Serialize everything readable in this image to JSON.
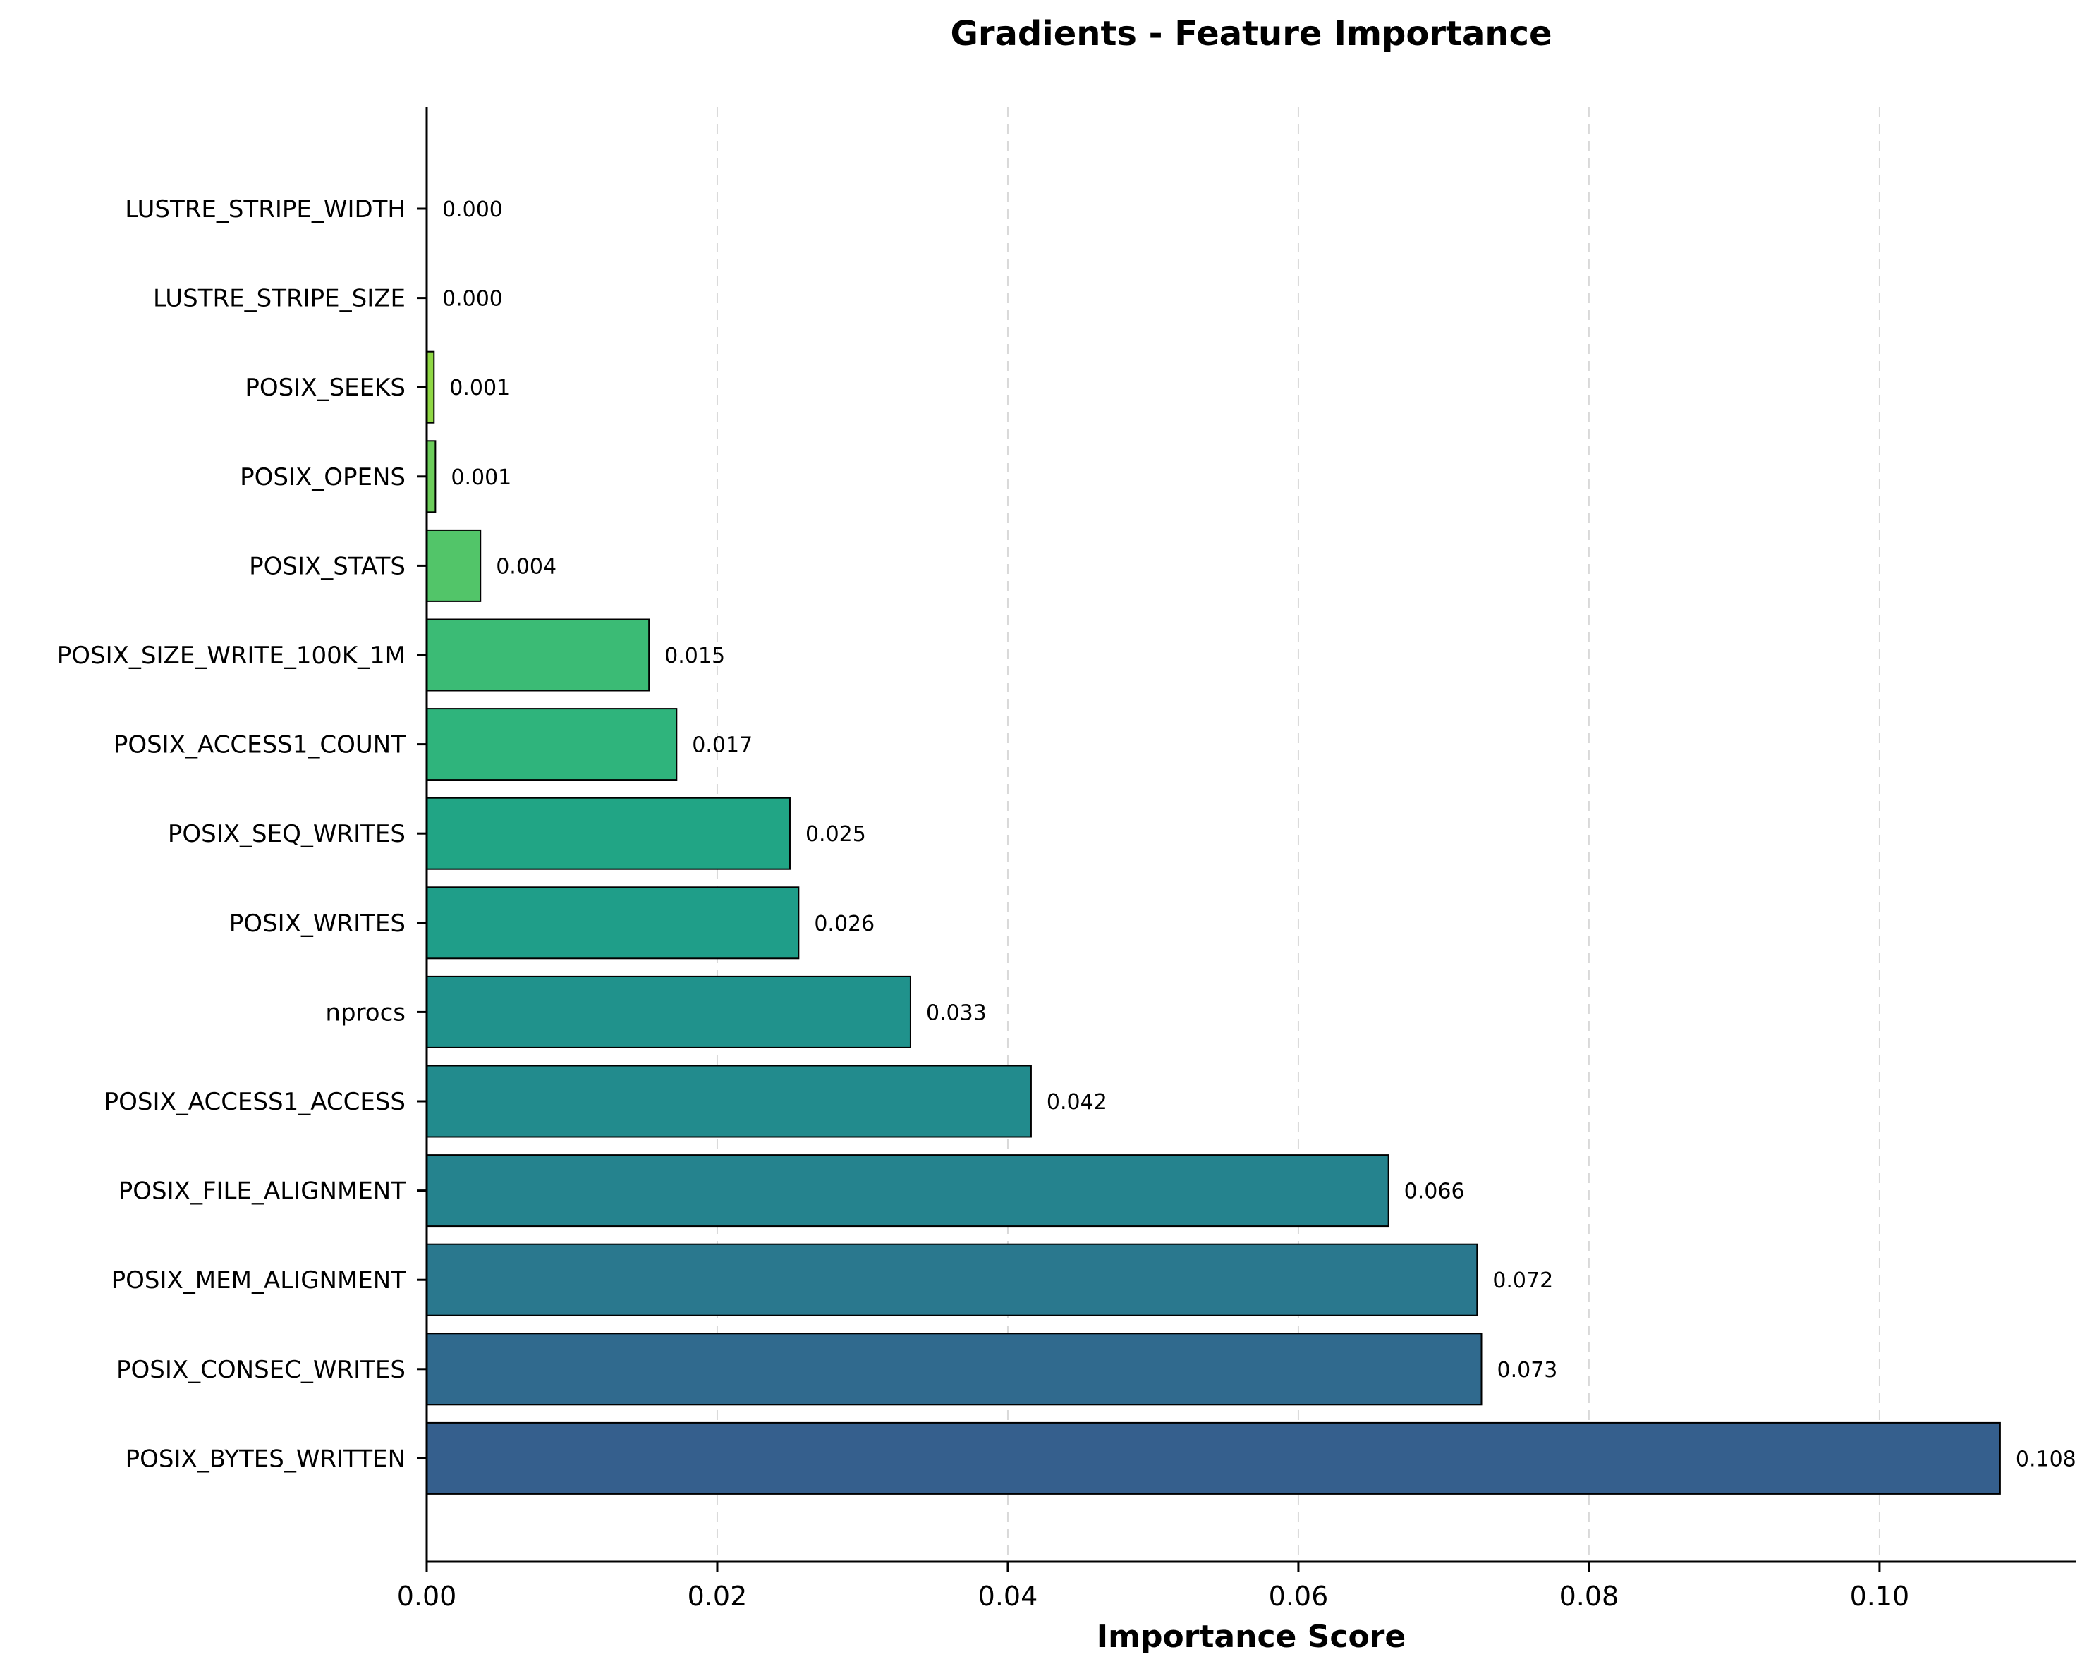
{
  "chart_data": {
    "type": "bar",
    "orientation": "horizontal",
    "title": "Gradients - Feature Importance",
    "xlabel": "Importance Score",
    "ylabel": "",
    "xlim": [
      0,
      0.1135
    ],
    "xticks": [
      0.0,
      0.02,
      0.04,
      0.06,
      0.08,
      0.1
    ],
    "xtick_labels": [
      "0.00",
      "0.02",
      "0.04",
      "0.06",
      "0.08",
      "0.10"
    ],
    "grid": "x, dashed",
    "categories": [
      "LUSTRE_STRIPE_WIDTH",
      "LUSTRE_STRIPE_SIZE",
      "POSIX_SEEKS",
      "POSIX_OPENS",
      "POSIX_STATS",
      "POSIX_SIZE_WRITE_100K_1M",
      "POSIX_ACCESS1_COUNT",
      "POSIX_SEQ_WRITES",
      "POSIX_WRITES",
      "nprocs",
      "POSIX_ACCESS1_ACCESS",
      "POSIX_FILE_ALIGNMENT",
      "POSIX_MEM_ALIGNMENT",
      "POSIX_CONSEC_WRITES",
      "POSIX_BYTES_WRITTEN"
    ],
    "values": [
      0.0,
      0.0,
      0.0005,
      0.0006,
      0.0037,
      0.0153,
      0.0172,
      0.025,
      0.0256,
      0.0333,
      0.0416,
      0.0662,
      0.0723,
      0.0726,
      0.1083
    ],
    "value_labels": [
      "0.000",
      "0.000",
      "0.001",
      "0.001",
      "0.004",
      "0.015",
      "0.017",
      "0.025",
      "0.026",
      "0.033",
      "0.042",
      "0.066",
      "0.072",
      "0.073",
      "0.108"
    ],
    "colors": [
      "#fde725",
      "#b5de2b",
      "#8fd744",
      "#6ccd5a",
      "#52c569",
      "#3bbb75",
      "#2fb47c",
      "#21a585",
      "#1f9e89",
      "#20928c",
      "#228b8d",
      "#25838e",
      "#2a788e",
      "#306a8e",
      "#355f8d"
    ]
  }
}
